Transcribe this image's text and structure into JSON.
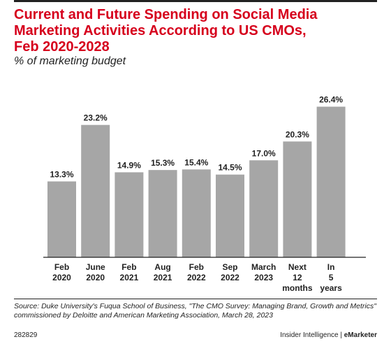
{
  "title": "Current and Future Spending on Social Media\nMarketing Activities According to US CMOs,\nFeb 2020-2028",
  "subtitle": "% of marketing budget",
  "chart_data": {
    "type": "bar",
    "categories": [
      "Feb\n2020",
      "June\n2020",
      "Feb\n2021",
      "Aug\n2021",
      "Feb\n2022",
      "Sep\n2022",
      "March\n2023",
      "Next\n12\nmonths",
      "In\n5\nyears"
    ],
    "values": [
      13.3,
      23.2,
      14.9,
      15.3,
      15.4,
      14.5,
      17.0,
      20.3,
      26.4
    ],
    "data_labels": [
      "13.3%",
      "23.2%",
      "14.9%",
      "15.3%",
      "15.4%",
      "14.5%",
      "17.0%",
      "20.3%",
      "26.4%"
    ],
    "title": "",
    "xlabel": "",
    "ylabel": "",
    "ylim": [
      0,
      30
    ],
    "grid": false,
    "colors": {
      "bar": "#a6a6a6",
      "axis": "#222222"
    }
  },
  "footer": {
    "source": "Source: Duke University's Fuqua School of Business, \"The CMO Survey: Managing Brand, Growth and Metrics\" commissioned by Deloitte and American Marketing Association, March 28, 2023",
    "chart_id": "282829",
    "brand_left": "Insider Intelligence",
    "brand_sep": " | ",
    "brand_right": "eMarketer"
  },
  "colors": {
    "accent": "#d6001c",
    "text": "#222222"
  }
}
